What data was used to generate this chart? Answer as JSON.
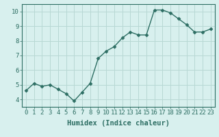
{
  "x": [
    0,
    1,
    2,
    3,
    4,
    5,
    6,
    7,
    8,
    9,
    10,
    11,
    12,
    13,
    14,
    15,
    16,
    17,
    18,
    19,
    20,
    21,
    22,
    23
  ],
  "y": [
    4.6,
    5.1,
    4.9,
    5.0,
    4.7,
    4.4,
    3.9,
    4.5,
    5.1,
    6.8,
    7.3,
    7.6,
    8.2,
    8.6,
    8.4,
    8.4,
    10.1,
    10.1,
    9.9,
    9.5,
    9.1,
    8.6,
    8.6,
    8.8
  ],
  "xlabel": "Humidex (Indice chaleur)",
  "ylim": [
    3.5,
    10.5
  ],
  "xlim": [
    -0.5,
    23.5
  ],
  "yticks": [
    4,
    5,
    6,
    7,
    8,
    9,
    10
  ],
  "xticks": [
    0,
    1,
    2,
    3,
    4,
    5,
    6,
    7,
    8,
    9,
    10,
    11,
    12,
    13,
    14,
    15,
    16,
    17,
    18,
    19,
    20,
    21,
    22,
    23
  ],
  "line_color": "#2d6e63",
  "marker": "D",
  "marker_size": 2.5,
  "bg_color": "#d8f0ee",
  "grid_color": "#b8d8d4",
  "xlabel_fontsize": 7.5,
  "tick_fontsize": 6.5,
  "line_width": 1.0,
  "spine_color": "#2d6e63"
}
